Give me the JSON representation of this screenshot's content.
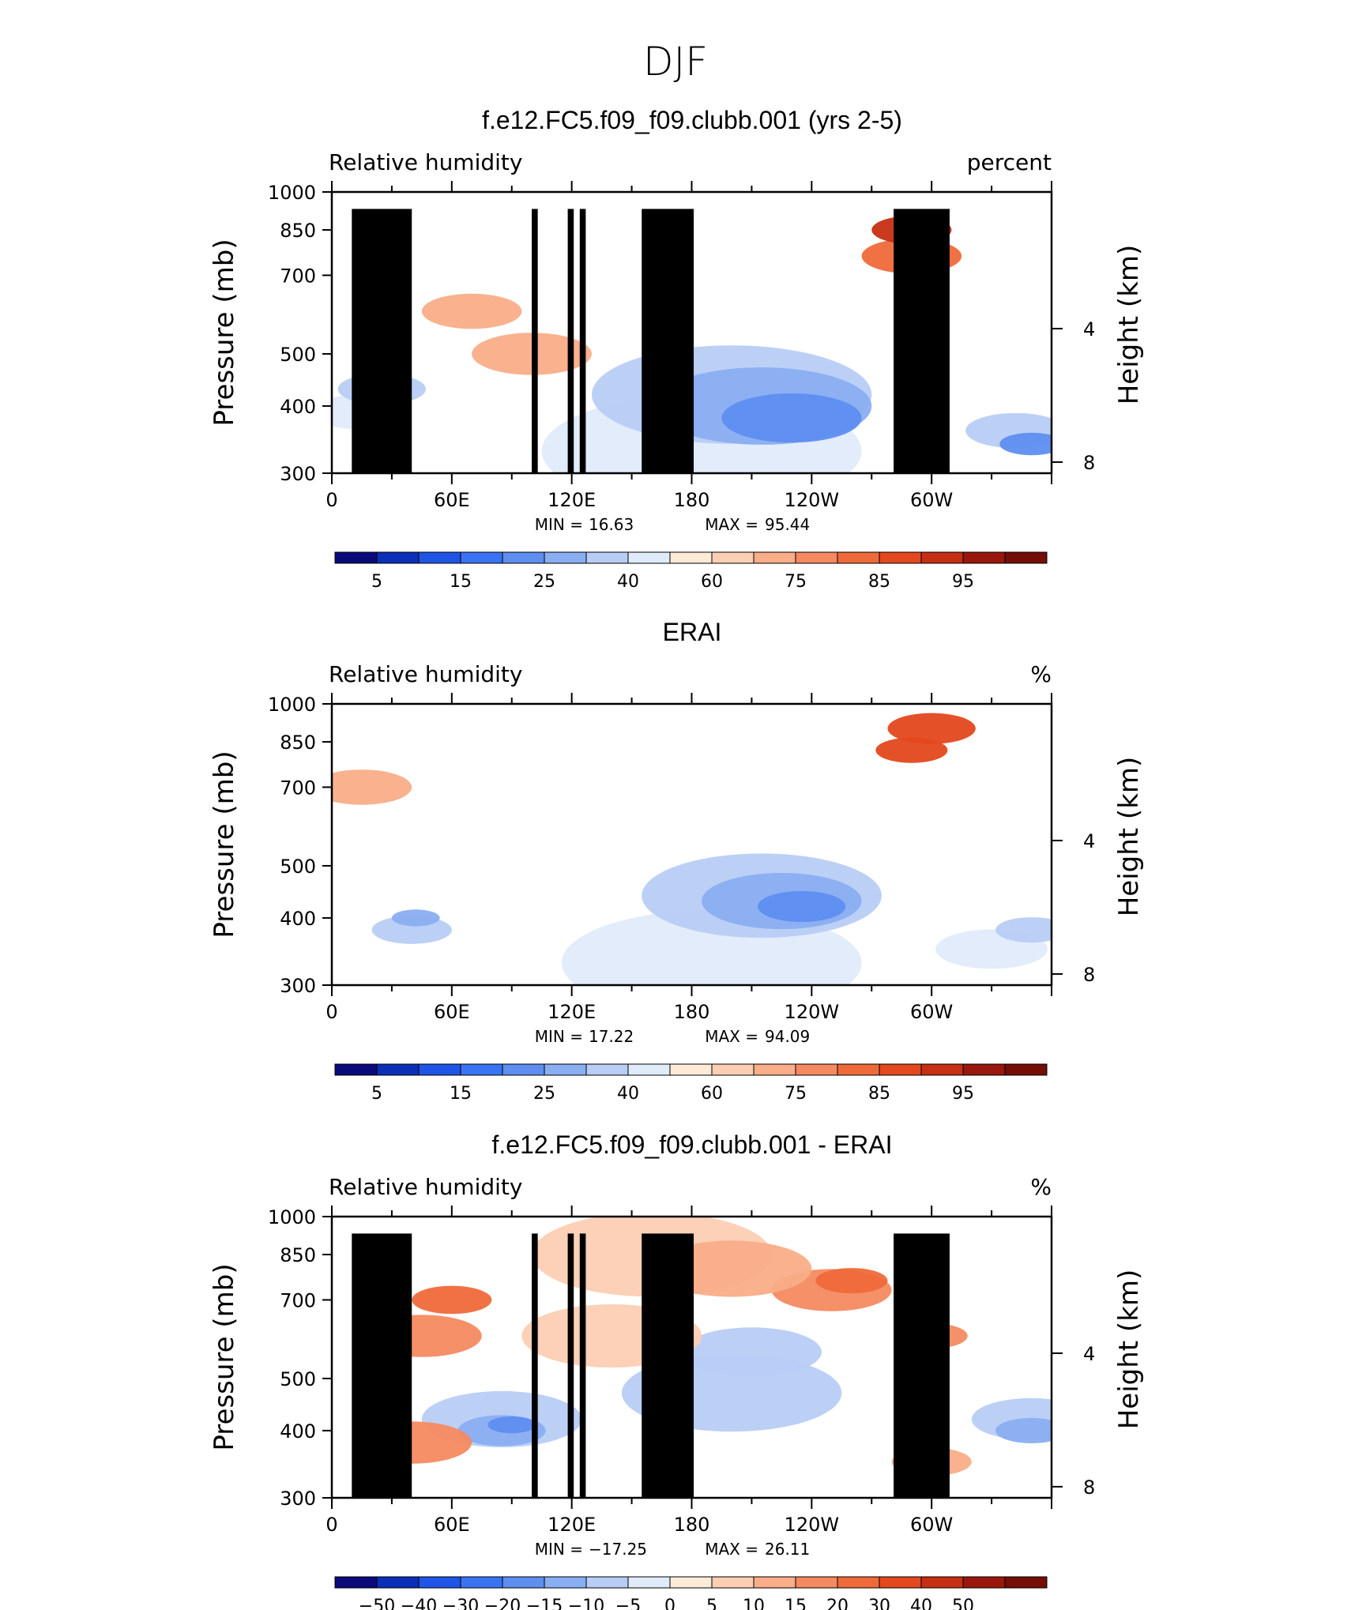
{
  "page": {
    "title": "DJF"
  },
  "colors": {
    "abs_scale": [
      "#0a0a7a",
      "#0b2fb8",
      "#1f55e6",
      "#3a73f2",
      "#5e8ef0",
      "#8aaef2",
      "#b8cdf5",
      "#e0ebfa",
      "#fdebd8",
      "#fccfb3",
      "#f9ad88",
      "#f58a60",
      "#ef6a3a",
      "#e3481e",
      "#c62f13",
      "#99170c",
      "#740e06"
    ],
    "diff_scale": [
      "#0a0a7a",
      "#0b2fb8",
      "#1f55e6",
      "#3a73f2",
      "#5e8ef0",
      "#8aaef2",
      "#b8cdf5",
      "#e0ebfa",
      "#fdebd8",
      "#fccfb3",
      "#f9ad88",
      "#f58a60",
      "#ef6a3a",
      "#e3481e",
      "#c62f13",
      "#99170c",
      "#740e06"
    ],
    "land_mask": "#000000"
  },
  "chart_data": [
    {
      "type": "heatmap",
      "id": "panel1",
      "title": "f.e12.FC5.f09_f09.clubb.001 (yrs 2-5)",
      "left_label": "Relative humidity",
      "units": "percent",
      "ylabel": "Pressure (mb)",
      "y2label": "Height (km)",
      "x_ticks": [
        "0",
        "60E",
        "120E",
        "180",
        "120W",
        "60W"
      ],
      "x_tick_values": [
        0,
        60,
        120,
        180,
        240,
        300
      ],
      "xlim": [
        0,
        360
      ],
      "y_ticks": [
        "300",
        "400",
        "500",
        "700",
        "850",
        "1000"
      ],
      "y_tick_values": [
        300,
        400,
        500,
        700,
        850,
        1000
      ],
      "ylim": [
        1000,
        300
      ],
      "y2_ticks": [
        "8",
        "4"
      ],
      "y2_tick_values": [
        8,
        4
      ],
      "stats": {
        "min_label": "MIN =",
        "min": "16.63",
        "max_label": "MAX =",
        "max": "95.44"
      },
      "colorbar": {
        "labels": [
          "5",
          "15",
          "25",
          "40",
          "60",
          "75",
          "85",
          "95"
        ],
        "levels": [
          5,
          10,
          15,
          20,
          25,
          30,
          40,
          50,
          60,
          65,
          70,
          75,
          80,
          85,
          90,
          95
        ]
      },
      "land": true,
      "scale": "abs"
    },
    {
      "type": "heatmap",
      "id": "panel2",
      "title": "ERAI",
      "left_label": "Relative humidity",
      "units": "%",
      "ylabel": "Pressure (mb)",
      "y2label": "Height (km)",
      "x_ticks": [
        "0",
        "60E",
        "120E",
        "180",
        "120W",
        "60W"
      ],
      "x_tick_values": [
        0,
        60,
        120,
        180,
        240,
        300
      ],
      "xlim": [
        0,
        360
      ],
      "y_ticks": [
        "300",
        "400",
        "500",
        "700",
        "850",
        "1000"
      ],
      "y_tick_values": [
        300,
        400,
        500,
        700,
        850,
        1000
      ],
      "ylim": [
        1000,
        300
      ],
      "y2_ticks": [
        "8",
        "4"
      ],
      "y2_tick_values": [
        8,
        4
      ],
      "stats": {
        "min_label": "MIN =",
        "min": "17.22",
        "max_label": "MAX =",
        "max": "94.09"
      },
      "colorbar": {
        "labels": [
          "5",
          "15",
          "25",
          "40",
          "60",
          "75",
          "85",
          "95"
        ],
        "levels": [
          5,
          10,
          15,
          20,
          25,
          30,
          40,
          50,
          60,
          65,
          70,
          75,
          80,
          85,
          90,
          95
        ]
      },
      "land": false,
      "scale": "abs"
    },
    {
      "type": "heatmap",
      "id": "panel3",
      "title": "f.e12.FC5.f09_f09.clubb.001 - ERAI",
      "left_label": "Relative humidity",
      "units": "%",
      "ylabel": "Pressure (mb)",
      "y2label": "Height (km)",
      "x_ticks": [
        "0",
        "60E",
        "120E",
        "180",
        "120W",
        "60W"
      ],
      "x_tick_values": [
        0,
        60,
        120,
        180,
        240,
        300
      ],
      "xlim": [
        0,
        360
      ],
      "y_ticks": [
        "300",
        "400",
        "500",
        "700",
        "850",
        "1000"
      ],
      "y_tick_values": [
        300,
        400,
        500,
        700,
        850,
        1000
      ],
      "ylim": [
        1000,
        300
      ],
      "y2_ticks": [
        "8",
        "4"
      ],
      "y2_tick_values": [
        8,
        4
      ],
      "stats": {
        "min_label": "MIN =",
        "min": "−17.25",
        "max_label": "MAX =",
        "max": "26.11"
      },
      "colorbar": {
        "labels": [
          "−50",
          "−40",
          "−30",
          "−20",
          "−15",
          "−10",
          "−5",
          "0",
          "5",
          "10",
          "15",
          "20",
          "30",
          "40",
          "50"
        ],
        "levels": [
          -50,
          -40,
          -30,
          -20,
          -15,
          -10,
          -5,
          0,
          5,
          10,
          15,
          20,
          30,
          40,
          50
        ]
      },
      "land": true,
      "scale": "diff"
    }
  ]
}
